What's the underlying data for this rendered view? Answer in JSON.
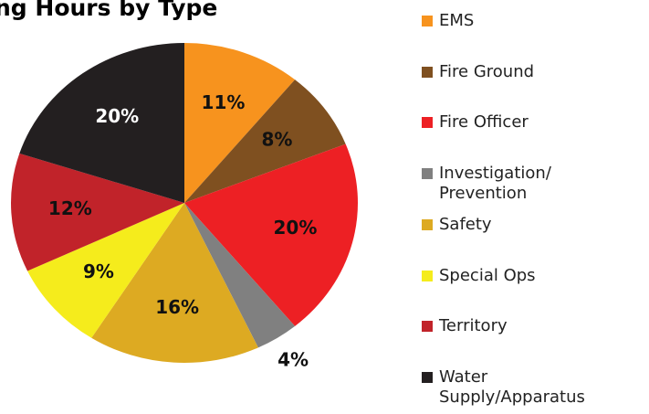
{
  "chart_data": {
    "type": "pie",
    "title": "ng Hours by Type",
    "categories": [
      "EMS",
      "Fire Ground",
      "Fire Officer",
      "Investigation/ Prevention",
      "Safety",
      "Special Ops",
      "Territory",
      "Water Supply/Apparatus"
    ],
    "values": [
      11,
      8,
      20,
      4,
      16,
      9,
      12,
      20
    ],
    "value_labels": [
      "11%",
      "8%",
      "20%",
      "4%",
      "16%",
      "9%",
      "12%",
      "20%"
    ],
    "colors": [
      "#f7931e",
      "#7f5020",
      "#ed2024",
      "#808080",
      "#ddaa22",
      "#f5ec1c",
      "#c1232a",
      "#231f20"
    ],
    "legend": "right"
  }
}
